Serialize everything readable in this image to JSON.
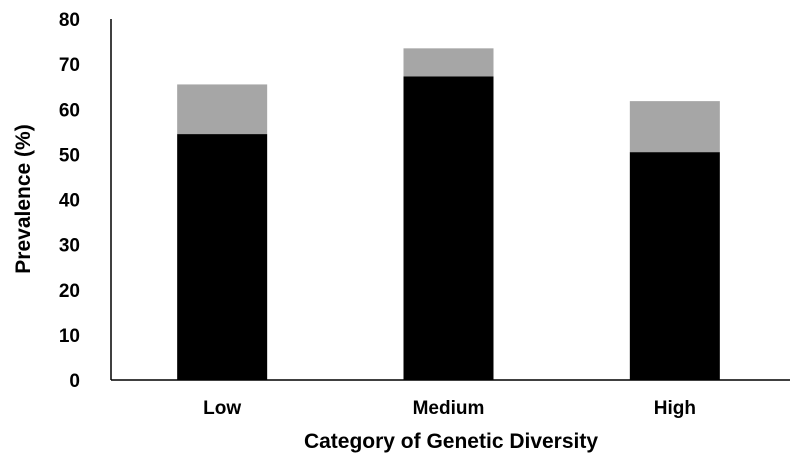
{
  "chart_data": {
    "type": "bar",
    "stacked": true,
    "title": "",
    "xlabel": "Category of Genetic Diversity",
    "ylabel": "Prevalence (%)",
    "ylim": [
      0,
      80
    ],
    "yticks": [
      "0",
      "10",
      "20",
      "30",
      "40",
      "50",
      "60",
      "70",
      "80"
    ],
    "categories": [
      "Low",
      "Medium",
      "High"
    ],
    "series": [
      {
        "values": [
          54.5,
          67.3,
          50.5
        ],
        "color": "#000000"
      },
      {
        "values": [
          11.0,
          6.2,
          11.3
        ],
        "color": "#a6a6a6"
      }
    ],
    "grid": false,
    "legend": "none"
  }
}
